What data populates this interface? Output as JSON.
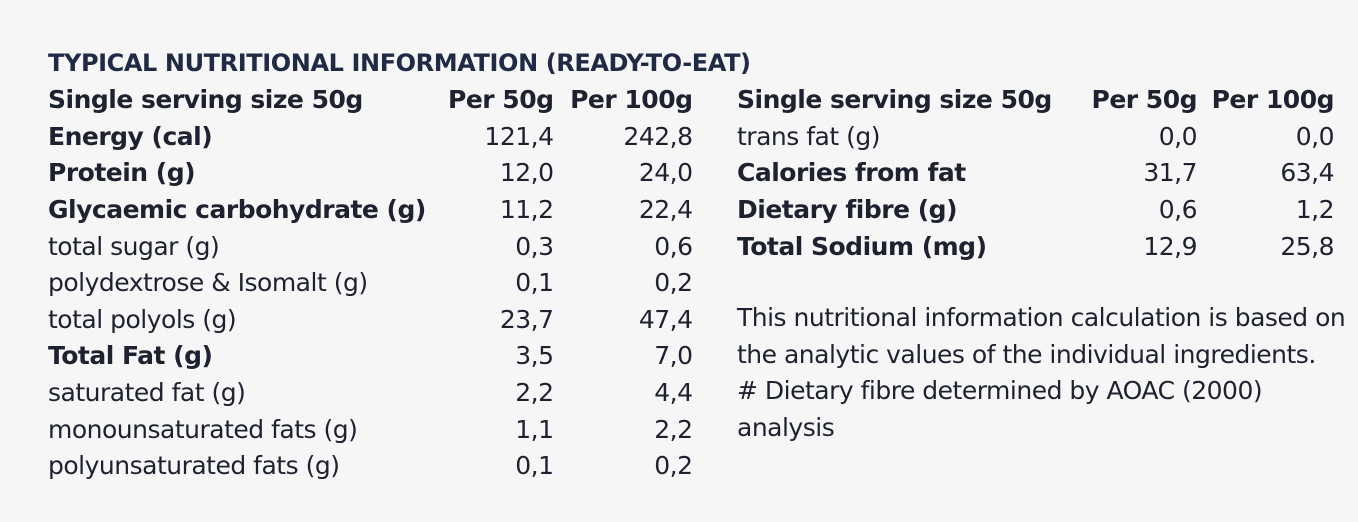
{
  "title": "TYPICAL NUTRITIONAL INFORMATION (READY-TO-EAT)",
  "left_table": {
    "headers": [
      "Single serving size 50g",
      "Per 50g",
      "Per 100g"
    ],
    "rows": [
      {
        "label": "Energy (cal)",
        "per50": "121,4",
        "per100": "242,8",
        "bold": true
      },
      {
        "label": "Protein (g)",
        "per50": "12,0",
        "per100": "24,0",
        "bold": true
      },
      {
        "label": "Glycaemic carbohydrate (g)",
        "per50": "11,2",
        "per100": "22,4",
        "bold": true
      },
      {
        "label": "total sugar (g)",
        "per50": "0,3",
        "per100": "0,6",
        "bold": false
      },
      {
        "label": "polydextrose & Isomalt (g)",
        "per50": "0,1",
        "per100": "0,2",
        "bold": false
      },
      {
        "label": "total polyols (g)",
        "per50": "23,7",
        "per100": "47,4",
        "bold": false
      },
      {
        "label": "Total Fat (g)",
        "per50": "3,5",
        "per100": "7,0",
        "bold": true
      },
      {
        "label": "saturated fat (g)",
        "per50": "2,2",
        "per100": "4,4",
        "bold": false
      },
      {
        "label": "monounsaturated fats (g)",
        "per50": "1,1",
        "per100": "2,2",
        "bold": false
      },
      {
        "label": "polyunsaturated fats (g)",
        "per50": "0,1",
        "per100": "0,2",
        "bold": false
      }
    ]
  },
  "right_table": {
    "headers": [
      "Single serving size 50g",
      "Per 50g",
      "Per 100g"
    ],
    "rows": [
      {
        "label": "trans fat (g)",
        "per50": "0,0",
        "per100": "0,0",
        "bold": false
      },
      {
        "label": "Calories from fat",
        "per50": "31,7",
        "per100": "63,4",
        "bold": true
      },
      {
        "label": "Dietary fibre (g)",
        "per50": "0,6",
        "per100": "1,2",
        "bold": true
      },
      {
        "label": "Total Sodium (mg)",
        "per50": "12,9",
        "per100": "25,8",
        "bold": true
      }
    ]
  },
  "notes": {
    "calculation": "This nutritional information calculation is based on the analytic values of the individual ingredients.",
    "fibre": "# Dietary fibre determined by AOAC (2000) analysis"
  }
}
